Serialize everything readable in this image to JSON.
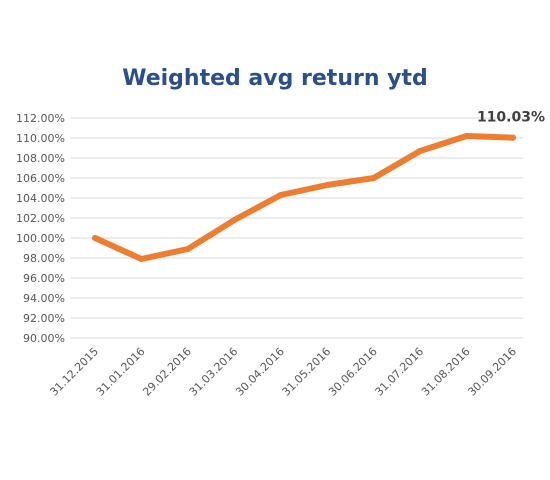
{
  "chart_data": {
    "type": "line",
    "title": "Weighted avg return ytd",
    "xlabel": "",
    "ylabel": "",
    "categories": [
      "31.12.2015",
      "31.01.2016",
      "29.02.2016",
      "31.03.2016",
      "30.04.2016",
      "31.05.2016",
      "30.06.2016",
      "31.07.2016",
      "31.08.2016",
      "30.09.2016"
    ],
    "series": [
      {
        "values": [
          100.0,
          97.9,
          98.9,
          101.8,
          104.3,
          105.3,
          106.0,
          108.7,
          110.2,
          110.03
        ],
        "color": "#ed7d31"
      }
    ],
    "ylim": [
      90,
      112
    ],
    "y_ticks": [
      "90.00%",
      "92.00%",
      "94.00%",
      "96.00%",
      "98.00%",
      "100.00%",
      "102.00%",
      "104.00%",
      "106.00%",
      "108.00%",
      "110.00%",
      "112.00%"
    ],
    "data_labels": [
      {
        "category": "30.09.2016",
        "text": "110.03%"
      }
    ],
    "grid": true,
    "legend": "none"
  }
}
